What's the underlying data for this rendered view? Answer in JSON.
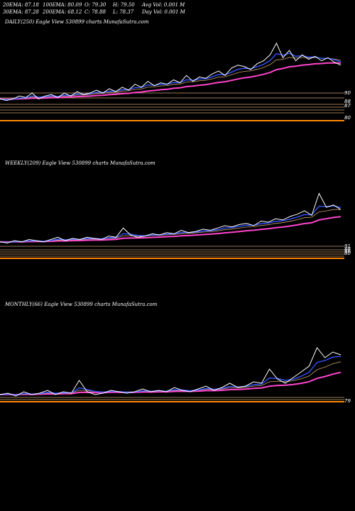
{
  "header": {
    "ema20": "20EMA: 87.18",
    "ema30": "30EMA: 87.28",
    "ema100": "100EMA: 80.09",
    "ema200": "200EMA: 68.12",
    "open": "O: 79.30",
    "close": "C: 78.88",
    "high": "H: 79.50",
    "low": "L: 78.37",
    "avg_vol": "Avg Vol: 0.001 M",
    "day_vol": "Day Vol: 0.001 M"
  },
  "panels": [
    {
      "label": "DAILY(250) Eagle  View  530899 charts MunafaSutra.com"
    },
    {
      "label": "WEEKLY(209) Eagle  View  530899 charts MunafaSutra.com"
    },
    {
      "label": "MONTHLY(66) Eagle  View  530899 charts MunafaSutra.com"
    }
  ],
  "colors": {
    "background": "#000000",
    "price": "#ffffff",
    "ema_fast": "#3355ff",
    "ema_slow": "#ff44cc",
    "ema_mid": "#c8a070",
    "support": "#ff8800"
  },
  "chart_data": [
    {
      "type": "line",
      "title": "DAILY(250)",
      "level_labels": [
        "90",
        "88",
        "87",
        "80"
      ],
      "series": [
        {
          "values": [
            62,
            61,
            62,
            64,
            63,
            66,
            62,
            64,
            65,
            63,
            66,
            64,
            67,
            65,
            66,
            68,
            66,
            69,
            67,
            70,
            68,
            72,
            70,
            74,
            71,
            73,
            72,
            75,
            73,
            78,
            74,
            77,
            76,
            79,
            81,
            78,
            83,
            85,
            84,
            82,
            86,
            88,
            92,
            100,
            90,
            95,
            88,
            92,
            89,
            91,
            88,
            90,
            87,
            85
          ]
        }
      ]
    },
    {
      "type": "line",
      "title": "WEEKLY(209)",
      "level_labels": [
        "91",
        "88",
        "86",
        "80"
      ],
      "series": [
        {
          "values": [
            48,
            47,
            49,
            48,
            50,
            49,
            48,
            50,
            52,
            49,
            51,
            50,
            52,
            51,
            50,
            53,
            52,
            60,
            54,
            52,
            53,
            55,
            54,
            56,
            55,
            58,
            56,
            57,
            59,
            58,
            60,
            62,
            61,
            63,
            64,
            62,
            66,
            65,
            68,
            67,
            70,
            72,
            75,
            71,
            90,
            78,
            80,
            76
          ]
        }
      ]
    },
    {
      "type": "line",
      "title": "MONTHLY(66)",
      "level_labels": [
        "79"
      ],
      "series": [
        {
          "values": [
            22,
            23,
            21,
            24,
            22,
            23,
            25,
            22,
            24,
            23,
            32,
            24,
            22,
            23,
            25,
            24,
            23,
            24,
            26,
            24,
            25,
            24,
            27,
            25,
            24,
            26,
            28,
            25,
            27,
            30,
            27,
            28,
            31,
            30,
            40,
            33,
            30,
            34,
            38,
            42,
            55,
            48,
            52,
            50
          ]
        }
      ]
    }
  ]
}
